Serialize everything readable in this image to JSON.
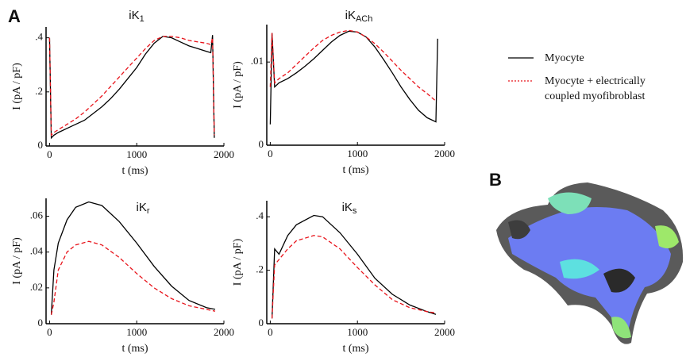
{
  "panel_labels": [
    "A",
    "B"
  ],
  "chart_data": [
    {
      "type": "line",
      "title": "iK",
      "title_sub": "1",
      "xlabel": "t (ms)",
      "ylabel": "I (pA / pF)",
      "xlim": [
        -40,
        2000
      ],
      "ylim": [
        0,
        0.44
      ],
      "xticks": [
        0,
        1000,
        2000
      ],
      "yticks": [
        0,
        {
          "value": 0.2,
          "label": ".2"
        },
        {
          "value": 0.4,
          "label": ".4"
        }
      ],
      "x": [
        0,
        20,
        50,
        100,
        200,
        300,
        400,
        500,
        600,
        700,
        800,
        900,
        1000,
        1100,
        1200,
        1300,
        1400,
        1500,
        1600,
        1700,
        1800,
        1850,
        1870,
        1890
      ],
      "series": [
        {
          "name": "Myocyte",
          "color": "#000000",
          "dash": "solid",
          "values": [
            0.4,
            0.03,
            0.04,
            0.05,
            0.065,
            0.08,
            0.095,
            0.12,
            0.145,
            0.175,
            0.21,
            0.25,
            0.29,
            0.34,
            0.38,
            0.405,
            0.4,
            0.385,
            0.37,
            0.36,
            0.35,
            0.345,
            0.41,
            0.03
          ]
        },
        {
          "name": "Myocyte + electrically coupled myofibroblast",
          "color": "#e8141b",
          "dash": "dashed",
          "values": [
            0.4,
            0.04,
            0.05,
            0.06,
            0.08,
            0.1,
            0.125,
            0.155,
            0.185,
            0.22,
            0.255,
            0.29,
            0.325,
            0.36,
            0.39,
            0.405,
            0.405,
            0.4,
            0.39,
            0.385,
            0.38,
            0.375,
            0.4,
            0.04
          ]
        }
      ]
    },
    {
      "type": "line",
      "title": "iK",
      "title_sub": "ACh",
      "xlabel": "t (ms)",
      "ylabel": "I (pA / pF)",
      "xlim": [
        -40,
        2000
      ],
      "ylim": [
        0,
        0.0145
      ],
      "xticks": [
        0,
        1000,
        2000
      ],
      "yticks": [
        0,
        {
          "value": 0.01,
          "label": ".01"
        }
      ],
      "x": [
        0,
        20,
        50,
        100,
        200,
        300,
        400,
        500,
        600,
        700,
        800,
        900,
        1000,
        1100,
        1200,
        1300,
        1400,
        1500,
        1600,
        1700,
        1800,
        1900,
        1920
      ],
      "series": [
        {
          "color": "#000000",
          "dash": "solid",
          "values": [
            0.0025,
            0.0135,
            0.007,
            0.0075,
            0.008,
            0.0087,
            0.0095,
            0.0104,
            0.0114,
            0.0124,
            0.0132,
            0.0137,
            0.0136,
            0.013,
            0.0118,
            0.0103,
            0.0087,
            0.007,
            0.0055,
            0.0042,
            0.0033,
            0.0028,
            0.0128
          ]
        },
        {
          "color": "#e8141b",
          "dash": "dashed",
          "values": [
            0.007,
            0.0135,
            0.0075,
            0.008,
            0.0087,
            0.0097,
            0.0107,
            0.0117,
            0.0126,
            0.0132,
            0.0136,
            0.0138,
            0.0136,
            0.013,
            0.0122,
            0.0112,
            0.0101,
            0.009,
            0.008,
            0.007,
            0.0062,
            0.0053,
            null
          ]
        }
      ]
    },
    {
      "type": "line",
      "title": "iK",
      "title_sub": "r",
      "xlabel": "t (ms)",
      "ylabel": "I (pA / pF)",
      "xlim": [
        -40,
        2000
      ],
      "ylim": [
        0,
        0.07
      ],
      "xticks": [
        0,
        1000,
        2000
      ],
      "yticks": [
        0,
        {
          "value": 0.02,
          "label": ".02"
        },
        {
          "value": 0.04,
          "label": ".04"
        },
        {
          "value": 0.06,
          "label": ".06"
        }
      ],
      "x": [
        20,
        50,
        100,
        200,
        300,
        450,
        600,
        800,
        1000,
        1200,
        1400,
        1600,
        1800,
        1900
      ],
      "series": [
        {
          "color": "#000000",
          "dash": "solid",
          "values": [
            0.005,
            0.03,
            0.045,
            0.058,
            0.065,
            0.068,
            0.066,
            0.057,
            0.045,
            0.032,
            0.021,
            0.013,
            0.009,
            0.008
          ]
        },
        {
          "color": "#e8141b",
          "dash": "dashed",
          "values": [
            0.005,
            0.012,
            0.03,
            0.04,
            0.044,
            0.046,
            0.044,
            0.037,
            0.028,
            0.02,
            0.014,
            0.01,
            0.008,
            0.007
          ]
        }
      ]
    },
    {
      "type": "line",
      "title": "iK",
      "title_sub": "s",
      "xlabel": "t (ms)",
      "ylabel": "I (pA / pF)",
      "xlim": [
        -40,
        2000
      ],
      "ylim": [
        0,
        0.46
      ],
      "xticks": [
        0,
        1000,
        2000
      ],
      "yticks": [
        0,
        {
          "value": 0.2,
          "label": ".2"
        },
        {
          "value": 0.4,
          "label": ".4"
        }
      ],
      "x": [
        20,
        50,
        100,
        200,
        300,
        500,
        600,
        800,
        1000,
        1200,
        1400,
        1600,
        1800,
        1900
      ],
      "series": [
        {
          "color": "#000000",
          "dash": "solid",
          "values": [
            0.02,
            0.28,
            0.26,
            0.33,
            0.37,
            0.405,
            0.4,
            0.34,
            0.26,
            0.17,
            0.11,
            0.07,
            0.045,
            0.035
          ]
        },
        {
          "color": "#e8141b",
          "dash": "dashed",
          "values": [
            0.02,
            0.22,
            0.24,
            0.28,
            0.31,
            0.33,
            0.325,
            0.28,
            0.21,
            0.145,
            0.09,
            0.06,
            0.045,
            0.04
          ]
        }
      ]
    }
  ]
}
